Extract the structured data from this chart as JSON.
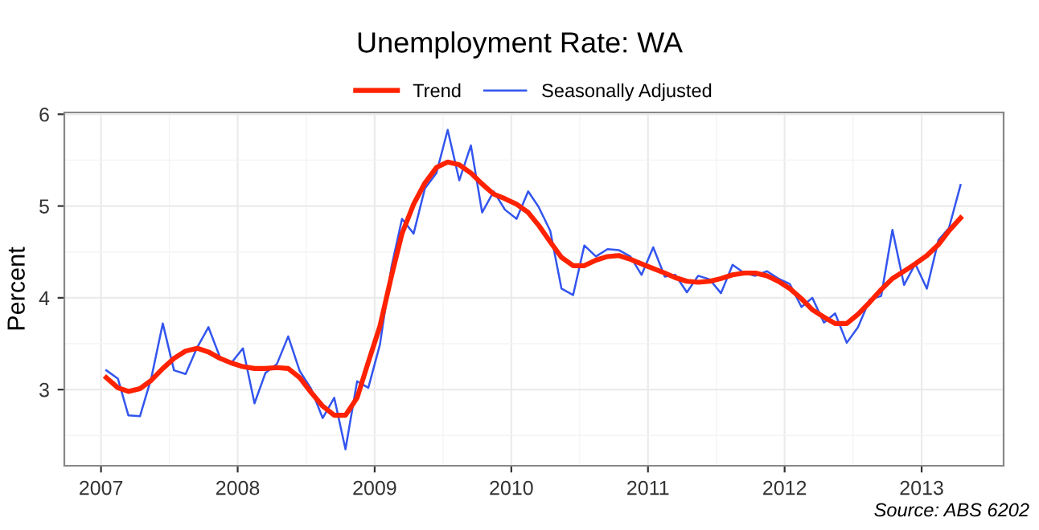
{
  "chart_data": {
    "type": "line",
    "title": "Unemployment Rate: WA",
    "ylabel": "Percent",
    "x": [
      "2007-01-15",
      "2007-02-15",
      "2007-03-15",
      "2007-04-15",
      "2007-05-15",
      "2007-06-15",
      "2007-07-15",
      "2007-08-15",
      "2007-09-15",
      "2007-10-15",
      "2007-11-15",
      "2007-12-15",
      "2008-01-15",
      "2008-02-15",
      "2008-03-15",
      "2008-04-15",
      "2008-05-15",
      "2008-06-15",
      "2008-07-15",
      "2008-08-15",
      "2008-09-15",
      "2008-10-15",
      "2008-11-15",
      "2008-12-15",
      "2009-01-15",
      "2009-02-15",
      "2009-03-15",
      "2009-04-15",
      "2009-05-15",
      "2009-06-15",
      "2009-07-15",
      "2009-08-15",
      "2009-09-15",
      "2009-10-15",
      "2009-11-15",
      "2009-12-15",
      "2010-01-15",
      "2010-02-15",
      "2010-03-15",
      "2010-04-15",
      "2010-05-15",
      "2010-06-15",
      "2010-07-15",
      "2010-08-15",
      "2010-09-15",
      "2010-10-15",
      "2010-11-15",
      "2010-12-15",
      "2011-01-15",
      "2011-02-15",
      "2011-03-15",
      "2011-04-15",
      "2011-05-15",
      "2011-06-15",
      "2011-07-15",
      "2011-08-15",
      "2011-09-15",
      "2011-10-15",
      "2011-11-15",
      "2011-12-15",
      "2012-01-15",
      "2012-02-15",
      "2012-03-15",
      "2012-04-15",
      "2012-05-15",
      "2012-06-15",
      "2012-07-15",
      "2012-08-15",
      "2012-09-15",
      "2012-10-15",
      "2012-11-15",
      "2012-12-15",
      "2013-01-15",
      "2013-02-15",
      "2013-03-15",
      "2013-04-15"
    ],
    "series": [
      {
        "name": "Trend",
        "color": "#ff2200",
        "values": [
          3.13,
          3.02,
          2.98,
          3.01,
          3.1,
          3.23,
          3.34,
          3.42,
          3.45,
          3.41,
          3.34,
          3.29,
          3.25,
          3.23,
          3.23,
          3.24,
          3.23,
          3.13,
          2.97,
          2.82,
          2.72,
          2.72,
          2.91,
          3.3,
          3.69,
          4.24,
          4.7,
          5.02,
          5.25,
          5.42,
          5.48,
          5.45,
          5.36,
          5.24,
          5.13,
          5.08,
          5.02,
          4.93,
          4.79,
          4.61,
          4.44,
          4.35,
          4.35,
          4.41,
          4.45,
          4.46,
          4.42,
          4.37,
          4.32,
          4.27,
          4.22,
          4.18,
          4.17,
          4.18,
          4.21,
          4.25,
          4.27,
          4.27,
          4.24,
          4.18,
          4.1,
          3.99,
          3.87,
          3.79,
          3.72,
          3.72,
          3.82,
          3.95,
          4.09,
          4.21,
          4.29,
          4.37,
          4.46,
          4.58,
          4.73,
          4.87
        ]
      },
      {
        "name": "Seasonally Adjusted",
        "color": "#3355ee",
        "values": [
          3.21,
          3.12,
          2.72,
          2.71,
          3.12,
          3.72,
          3.21,
          3.17,
          3.46,
          3.68,
          3.35,
          3.29,
          3.45,
          2.85,
          3.18,
          3.28,
          3.58,
          3.2,
          3.01,
          2.69,
          2.91,
          2.35,
          3.09,
          3.02,
          3.49,
          4.34,
          4.86,
          4.7,
          5.19,
          5.36,
          5.83,
          5.28,
          5.66,
          4.93,
          5.16,
          4.96,
          4.86,
          5.16,
          4.99,
          4.73,
          4.1,
          4.03,
          4.57,
          4.45,
          4.53,
          4.52,
          4.45,
          4.25,
          4.55,
          4.23,
          4.25,
          4.06,
          4.24,
          4.2,
          4.05,
          4.36,
          4.27,
          4.24,
          4.29,
          4.21,
          4.15,
          3.9,
          4.0,
          3.73,
          3.83,
          3.51,
          3.68,
          3.98,
          4.02,
          4.74,
          4.14,
          4.37,
          4.1,
          4.63,
          4.76,
          5.23
        ]
      }
    ],
    "xlim": [
      "2006-09-25",
      "2013-08-08"
    ],
    "xticks": [
      {
        "value": "2007-01-01",
        "label": "2007"
      },
      {
        "value": "2008-01-01",
        "label": "2008"
      },
      {
        "value": "2009-01-01",
        "label": "2009"
      },
      {
        "value": "2010-01-01",
        "label": "2010"
      },
      {
        "value": "2011-01-01",
        "label": "2011"
      },
      {
        "value": "2012-01-01",
        "label": "2012"
      },
      {
        "value": "2013-01-01",
        "label": "2013"
      }
    ],
    "ylim": [
      2.17,
      6.02
    ],
    "yticks": [
      3,
      4,
      5,
      6
    ],
    "grid": true,
    "legend": "top",
    "marker": "none",
    "line_style": "solid",
    "annotations": [
      "Source: ABS 6202"
    ]
  }
}
